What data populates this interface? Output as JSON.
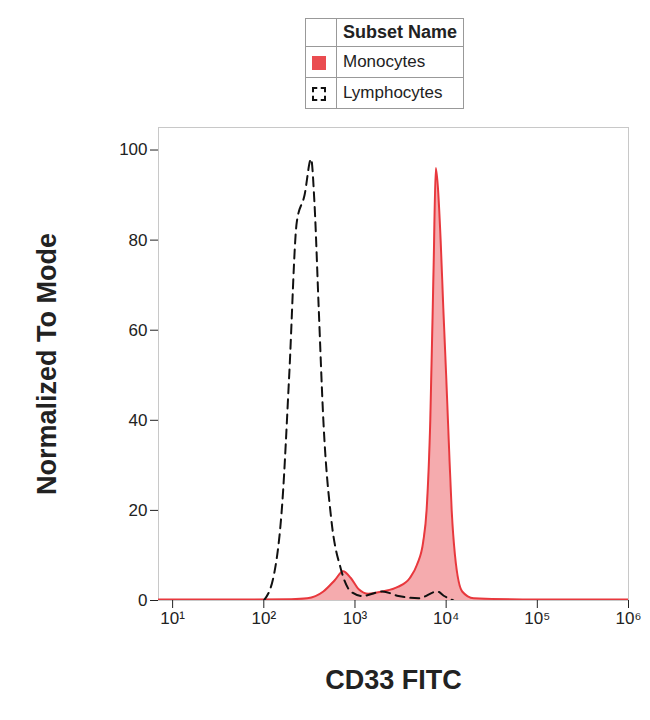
{
  "chart_data": {
    "type": "area",
    "xlabel": "CD33 FITC",
    "ylabel": "Normalized To Mode",
    "legend_title": "Subset Name",
    "legend": "top",
    "log": "x",
    "xlim": [
      7,
      1000000
    ],
    "ylim": [
      0,
      105
    ],
    "xticks": [
      {
        "value": 10,
        "label": "10¹"
      },
      {
        "value": 100,
        "label": "10²"
      },
      {
        "value": 1000,
        "label": "10³"
      },
      {
        "value": 10000,
        "label": "10⁴"
      },
      {
        "value": 100000,
        "label": "10⁵"
      },
      {
        "value": 1000000,
        "label": "10⁶"
      }
    ],
    "yticks": [
      0,
      20,
      40,
      60,
      80,
      100
    ],
    "series": [
      {
        "name": "Monocytes",
        "type": "area",
        "color": "#e8383d",
        "line_style": "solid",
        "x": [
          7,
          50,
          200,
          300,
          450,
          600,
          740,
          900,
          1100,
          1400,
          2000,
          2950,
          4000,
          4800,
          5600,
          6100,
          6700,
          7300,
          7700,
          8100,
          8700,
          9300,
          10000,
          10700,
          11500,
          12500,
          15000,
          20000,
          100000,
          1000000
        ],
        "values": [
          0.2,
          0.2,
          0.3,
          0.5,
          2,
          4.5,
          6.5,
          5,
          2.5,
          1.5,
          2,
          3,
          5,
          8,
          13,
          20,
          40,
          75,
          96,
          92,
          80,
          65,
          50,
          35,
          20,
          10,
          2,
          0.5,
          0.2,
          0.2
        ]
      },
      {
        "name": "Lymphocytes",
        "type": "line",
        "color": "#111111",
        "line_style": "dashed",
        "x": [
          100,
          130,
          160,
          190,
          230,
          280,
          330,
          360,
          400,
          450,
          550,
          700,
          900,
          1200,
          2000,
          3000,
          5000,
          8000,
          9500,
          12000
        ],
        "values": [
          0,
          6,
          22,
          50,
          84,
          90,
          98,
          88,
          65,
          40,
          18,
          7,
          2,
          1,
          2,
          1,
          0.5,
          2,
          1,
          0
        ]
      }
    ]
  }
}
